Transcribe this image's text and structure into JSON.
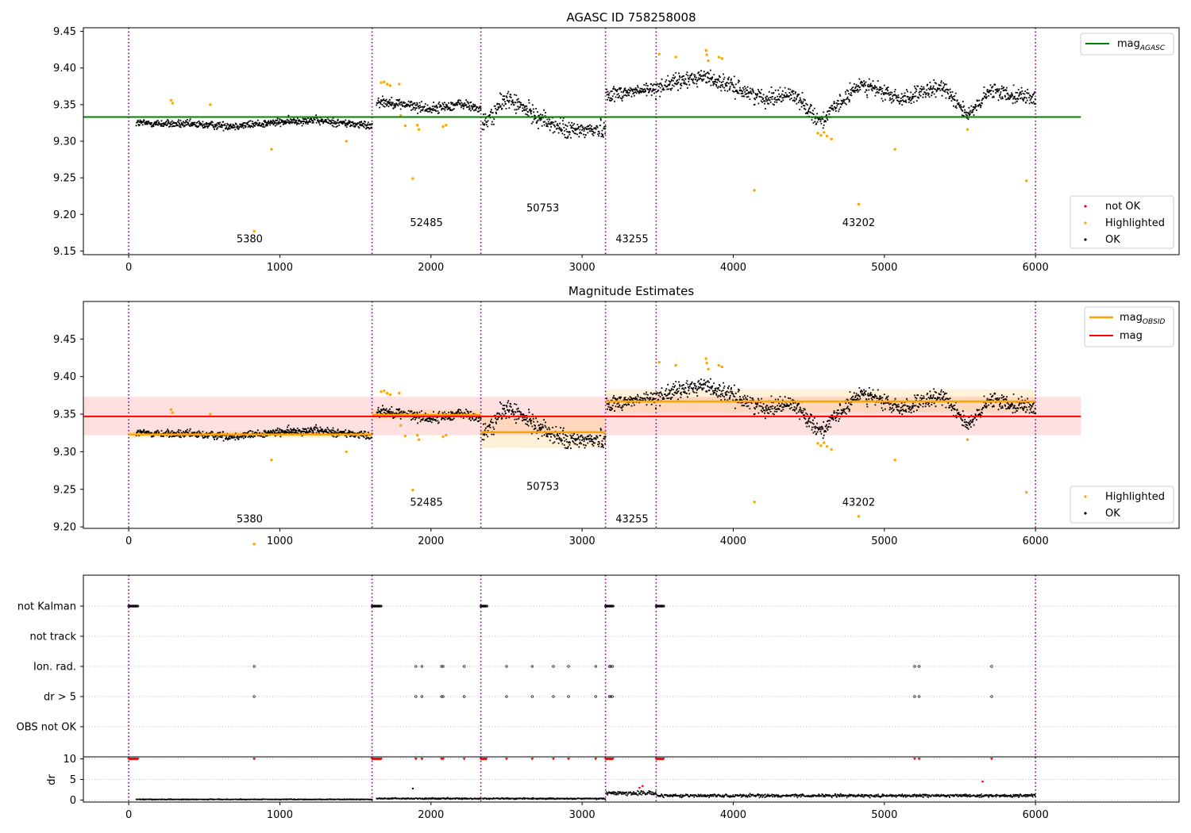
{
  "chart_data": [
    {
      "type": "scatter",
      "title": "AGASC ID 758258008",
      "xlim": [
        -300,
        6950
      ],
      "ylim": [
        9.145,
        9.455
      ],
      "xticks": [
        "0",
        "1000",
        "2000",
        "3000",
        "4000",
        "5000",
        "6000"
      ],
      "yticks": [
        "9.15",
        "9.20",
        "9.25",
        "9.30",
        "9.35",
        "9.40",
        "9.45"
      ],
      "grid": false,
      "obs_boundaries": [
        0,
        1610,
        2330,
        3155,
        3490,
        6000
      ],
      "obsid_labels": [
        {
          "text": "5380",
          "x": 800,
          "y": 9.162
        },
        {
          "text": "52485",
          "x": 1970,
          "y": 9.184
        },
        {
          "text": "50753",
          "x": 2740,
          "y": 9.204
        },
        {
          "text": "43255",
          "x": 3330,
          "y": 9.162
        },
        {
          "text": "43202",
          "x": 4830,
          "y": 9.184
        }
      ],
      "reference_line": {
        "name": "mag",
        "subscript": "AGASC",
        "y": 9.333,
        "x": [
          -300,
          6300
        ],
        "color": "#008000"
      },
      "legend_lines": {
        "name": "mag",
        "subscript": "AGASC",
        "placement": "top-right"
      },
      "legend_points": {
        "placement": "lower-right",
        "entries": [
          {
            "name": "not OK",
            "color": "#ff0000"
          },
          {
            "name": "Highlighted",
            "color": "#ffa500"
          },
          {
            "name": "OK",
            "color": "#000000"
          }
        ]
      },
      "segments": [
        {
          "x": [
            50,
            1610
          ],
          "levels": [
            [
              50,
              9.326
            ],
            [
              700,
              9.322
            ],
            [
              1200,
              9.33
            ],
            [
              1610,
              9.322
            ]
          ],
          "spread": 0.007
        },
        {
          "x": [
            1640,
            2330
          ],
          "levels": [
            [
              1640,
              9.356
            ],
            [
              1800,
              9.352
            ],
            [
              2000,
              9.345
            ],
            [
              2200,
              9.352
            ],
            [
              2330,
              9.345
            ]
          ],
          "spread": 0.009
        },
        {
          "x": [
            2340,
            3155
          ],
          "levels": [
            [
              2340,
              9.322
            ],
            [
              2500,
              9.36
            ],
            [
              2700,
              9.335
            ],
            [
              2900,
              9.315
            ],
            [
              3155,
              9.318
            ]
          ],
          "spread": 0.016
        },
        {
          "x": [
            3160,
            3490
          ],
          "levels": [
            [
              3160,
              9.365
            ],
            [
              3490,
              9.372
            ]
          ],
          "spread": 0.013
        },
        {
          "x": [
            3495,
            6000
          ],
          "levels": [
            [
              3495,
              9.375
            ],
            [
              3800,
              9.39
            ],
            [
              4200,
              9.36
            ],
            [
              4400,
              9.365
            ],
            [
              4580,
              9.328
            ],
            [
              4850,
              9.38
            ],
            [
              5100,
              9.358
            ],
            [
              5400,
              9.375
            ],
            [
              5560,
              9.335
            ],
            [
              5700,
              9.37
            ],
            [
              6000,
              9.36
            ]
          ],
          "spread": 0.014
        }
      ],
      "highlighted": [
        [
          280,
          9.356
        ],
        [
          290,
          9.352
        ],
        [
          540,
          9.35
        ],
        [
          830,
          9.177
        ],
        [
          945,
          9.289
        ],
        [
          1440,
          9.3
        ],
        [
          1670,
          9.38
        ],
        [
          1690,
          9.381
        ],
        [
          1710,
          9.378
        ],
        [
          1730,
          9.376
        ],
        [
          1790,
          9.378
        ],
        [
          1800,
          9.335
        ],
        [
          1830,
          9.321
        ],
        [
          1880,
          9.249
        ],
        [
          1910,
          9.322
        ],
        [
          1920,
          9.316
        ],
        [
          2080,
          9.32
        ],
        [
          2100,
          9.322
        ],
        [
          3510,
          9.419
        ],
        [
          3620,
          9.415
        ],
        [
          3820,
          9.424
        ],
        [
          3825,
          9.418
        ],
        [
          3835,
          9.41
        ],
        [
          3905,
          9.415
        ],
        [
          3925,
          9.413
        ],
        [
          4140,
          9.233
        ],
        [
          4560,
          9.311
        ],
        [
          4580,
          9.308
        ],
        [
          4600,
          9.312
        ],
        [
          4620,
          9.307
        ],
        [
          4650,
          9.303
        ],
        [
          4830,
          9.214
        ],
        [
          5070,
          9.289
        ],
        [
          5550,
          9.316
        ],
        [
          5940,
          9.246
        ]
      ]
    },
    {
      "type": "scatter",
      "title": "Magnitude Estimates",
      "xlim": [
        -300,
        6950
      ],
      "ylim": [
        9.198,
        9.5
      ],
      "xticks": [
        "0",
        "1000",
        "2000",
        "3000",
        "4000",
        "5000",
        "6000"
      ],
      "yticks": [
        "9.20",
        "9.25",
        "9.30",
        "9.35",
        "9.40",
        "9.45"
      ],
      "grid": false,
      "obsid_labels": [
        {
          "text": "5380",
          "x": 800,
          "y": 9.206
        },
        {
          "text": "52485",
          "x": 1970,
          "y": 9.228
        },
        {
          "text": "50753",
          "x": 2740,
          "y": 9.249
        },
        {
          "text": "43255",
          "x": 3330,
          "y": 9.206
        },
        {
          "text": "43202",
          "x": 4830,
          "y": 9.228
        }
      ],
      "mag_line": {
        "name": "mag",
        "y": 9.347,
        "band": [
          9.322,
          9.373
        ],
        "x": [
          -300,
          6300
        ],
        "color": "#ff0000"
      },
      "mag_obsid": [
        {
          "x": [
            0,
            1610
          ],
          "y": 9.323,
          "band": [
            9.318,
            9.328
          ]
        },
        {
          "x": [
            1610,
            2330
          ],
          "y": 9.349,
          "band": [
            9.343,
            9.356
          ]
        },
        {
          "x": [
            2330,
            3155
          ],
          "y": 9.326,
          "band": [
            9.305,
            9.347
          ]
        },
        {
          "x": [
            3155,
            6000
          ],
          "y": 9.367,
          "band": [
            9.352,
            9.383
          ]
        }
      ],
      "legend_lines": {
        "placement": "top-right",
        "entries": [
          {
            "name": "mag",
            "subscript": "OBSID",
            "color": "#ffa500"
          },
          {
            "name": "mag",
            "subscript": "",
            "color": "#ff0000"
          }
        ]
      },
      "legend_points": {
        "placement": "lower-right",
        "entries": [
          {
            "name": "Highlighted",
            "color": "#ffa500"
          },
          {
            "name": "OK",
            "color": "#000000"
          }
        ]
      }
    },
    {
      "type": "scatter",
      "title": "",
      "categories": [
        "not Kalman",
        "not track",
        "Ion. rad.",
        "dr > 5",
        "OBS not OK"
      ],
      "not_kalman": [
        [
          0,
          60
        ],
        [
          1610,
          1670
        ],
        [
          2330,
          2370
        ],
        [
          3155,
          3205
        ],
        [
          3490,
          3540
        ]
      ],
      "ion_rad_x": [
        830,
        1900,
        1940,
        2070,
        2080,
        2220,
        2500,
        2670,
        2810,
        2910,
        3090,
        3180,
        3190,
        3200,
        5200,
        5230,
        5710
      ],
      "dr_gt5_x": [
        830,
        1900,
        1940,
        2070,
        2080,
        2220,
        2500,
        2670,
        2810,
        2910,
        3090,
        3180,
        3190,
        3200,
        5200,
        5230,
        5710
      ],
      "dr": {
        "ylabel": "dr",
        "ylim": [
          -0.5,
          10.5
        ],
        "yticks": [
          "0",
          "5",
          "10"
        ],
        "xticks": [
          "0",
          "1000",
          "2000",
          "3000",
          "4000",
          "5000",
          "6000"
        ],
        "capped_value": 10,
        "capped_x": [
          830,
          1900,
          1940,
          2070,
          2080,
          2220,
          2500,
          2670,
          2810,
          2910,
          3090,
          5200,
          5230,
          5710
        ],
        "capped_ranges": [
          [
            0,
            60
          ],
          [
            1610,
            1670
          ],
          [
            2330,
            2370
          ],
          [
            3155,
            3205
          ],
          [
            3490,
            3540
          ]
        ],
        "segments": [
          {
            "x": [
              50,
              1610
            ],
            "level": 0.3
          },
          {
            "x": [
              1640,
              2330
            ],
            "level": 0.5
          },
          {
            "x": [
              2340,
              3155
            ],
            "level": 0.5
          },
          {
            "x": [
              3160,
              3490
            ],
            "level": 1.8
          },
          {
            "x": [
              3495,
              6000
            ],
            "level": 1.2
          }
        ],
        "red_points": [
          [
            3380,
            3.0
          ],
          [
            3400,
            3.4
          ],
          [
            5650,
            4.5
          ]
        ],
        "outliers": [
          [
            1880,
            2.8
          ]
        ]
      }
    }
  ]
}
